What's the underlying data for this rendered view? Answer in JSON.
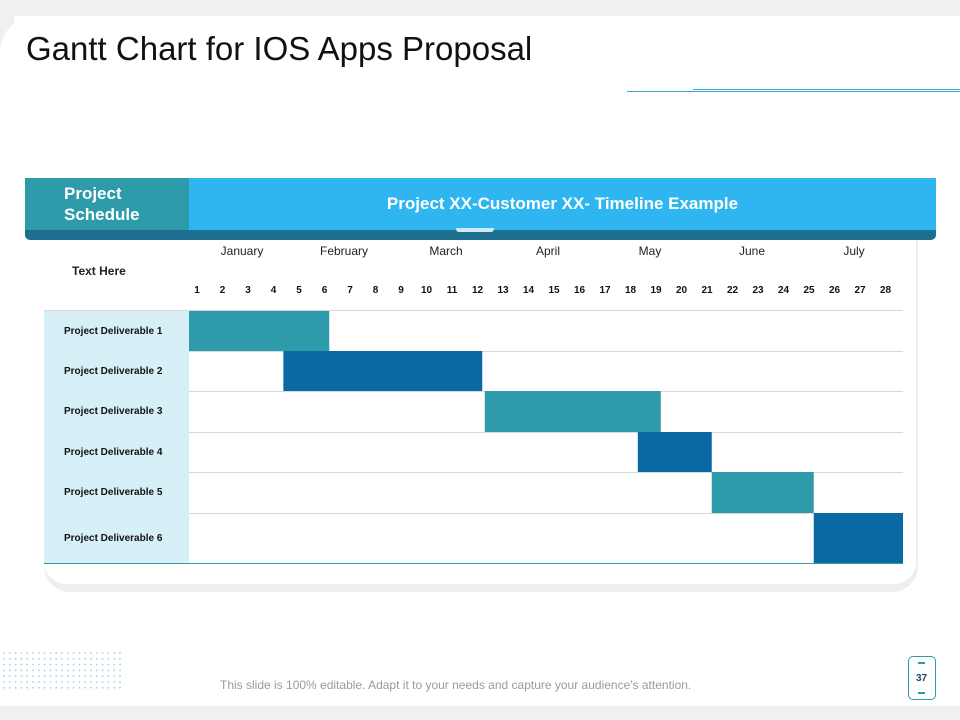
{
  "title": "Gantt Chart for IOS Apps Proposal",
  "header": {
    "left_label": "Project Schedule",
    "right_label": "Project XX-Customer XX- Timeline Example"
  },
  "row_header": "Text Here",
  "footer": "This slide is 100% editable. Adapt it to your needs and capture your audience's attention.",
  "page_number": "37",
  "colors": {
    "teal": "#2e9bab",
    "navy": "#0a68a3",
    "header_blue": "#2fb6f0",
    "label_bg": "#d7f0f7"
  },
  "chart_data": {
    "type": "gantt",
    "title": "Project XX-Customer XX- Timeline Example",
    "months": [
      "January",
      "February",
      "March",
      "April",
      "May",
      "June",
      "July"
    ],
    "weeks": [
      "1",
      "2",
      "3",
      "4",
      "5",
      "6",
      "7",
      "8",
      "9",
      "10",
      "11",
      "12",
      "13",
      "14",
      "15",
      "16",
      "17",
      "18",
      "19",
      "20",
      "21",
      "22",
      "23",
      "24",
      "25",
      "26",
      "27",
      "28"
    ],
    "tasks": [
      {
        "name": "Project Deliverable 1",
        "start_week": 1,
        "end_week": 5.5,
        "color": "teal"
      },
      {
        "name": "Project Deliverable 2",
        "start_week": 4.7,
        "end_week": 11.5,
        "color": "navy"
      },
      {
        "name": "Project Deliverable 3",
        "start_week": 12.6,
        "end_week": 18.5,
        "color": "teal"
      },
      {
        "name": "Project Deliverable 4",
        "start_week": 18.6,
        "end_week": 20.5,
        "color": "navy"
      },
      {
        "name": "Project Deliverable 5",
        "start_week": 21.5,
        "end_week": 24.5,
        "color": "teal"
      },
      {
        "name": "Project Deliverable 6",
        "start_week": 25.5,
        "end_week": 28.5,
        "color": "navy"
      }
    ]
  }
}
